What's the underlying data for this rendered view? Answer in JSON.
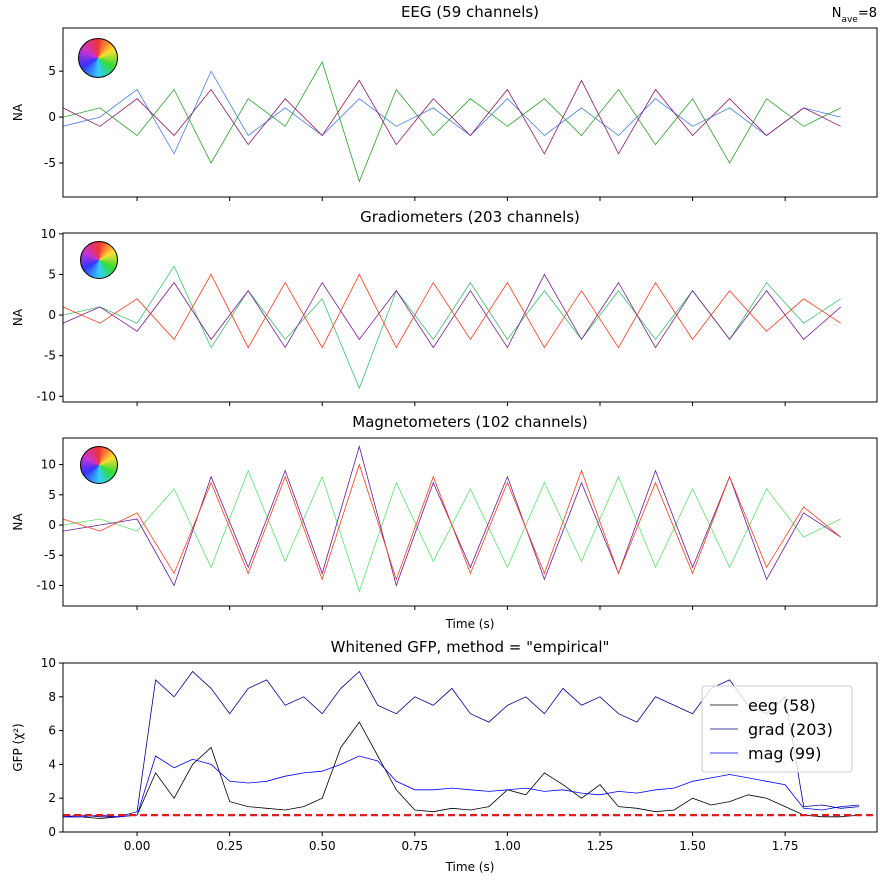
{
  "chart_data": [
    {
      "type": "line",
      "title": "EEG (59 channels)",
      "ylabel": "NA",
      "annotation": {
        "base": "N",
        "subscript": "ave",
        "text": "=8"
      },
      "x": [
        -0.2,
        -0.1,
        0,
        0.1,
        0.2,
        0.3,
        0.4,
        0.5,
        0.6,
        0.7,
        0.8,
        0.9,
        1.0,
        1.1,
        1.2,
        1.3,
        1.4,
        1.5,
        1.6,
        1.7,
        1.8,
        1.9
      ],
      "series": [
        {
          "color": "#4a7fe0",
          "values": [
            -1,
            0,
            3,
            -4,
            5,
            -2,
            1,
            -2,
            2,
            -1,
            1,
            -2,
            2,
            -2,
            1,
            -2,
            2,
            -1,
            1,
            -2,
            1,
            0
          ]
        },
        {
          "color": "#2ca02c",
          "values": [
            0,
            1,
            -2,
            3,
            -5,
            2,
            -1,
            6,
            -7,
            3,
            -2,
            2,
            -1,
            2,
            -2,
            3,
            -3,
            2,
            -5,
            2,
            -1,
            1
          ]
        },
        {
          "color": "#8b1a6b",
          "values": [
            1,
            -1,
            2,
            -2,
            3,
            -3,
            2,
            -2,
            4,
            -3,
            2,
            -2,
            3,
            -4,
            4,
            -4,
            3,
            -2,
            2,
            -2,
            1,
            -1
          ]
        }
      ],
      "xlim": [
        -0.2,
        1.998
      ],
      "xticks": [
        0,
        0.25,
        0.5,
        0.75,
        1,
        1.25,
        1.5,
        1.75
      ],
      "show_xtick_labels": false,
      "ylim": [
        -8.7,
        9.7
      ],
      "yticks": [
        -5,
        0,
        5
      ]
    },
    {
      "type": "line",
      "title": "Gradiometers (203 channels)",
      "ylabel": "NA",
      "x": [
        -0.2,
        -0.1,
        0,
        0.1,
        0.2,
        0.3,
        0.4,
        0.5,
        0.6,
        0.7,
        0.8,
        0.9,
        1.0,
        1.1,
        1.2,
        1.3,
        1.4,
        1.5,
        1.6,
        1.7,
        1.8,
        1.9
      ],
      "series": [
        {
          "color": "#40c070",
          "values": [
            0,
            1,
            -1,
            6,
            -4,
            3,
            -3,
            2,
            -9,
            3,
            -3,
            4,
            -3,
            3,
            -3,
            3,
            -3,
            3,
            -3,
            4,
            -1,
            2
          ]
        },
        {
          "color": "#7b2090",
          "values": [
            -1,
            1,
            -2,
            4,
            -3,
            3,
            -4,
            4,
            -3,
            3,
            -4,
            3,
            -4,
            5,
            -3,
            4,
            -4,
            3,
            -3,
            3,
            -3,
            1
          ]
        },
        {
          "color": "#f04020",
          "values": [
            1,
            -1,
            2,
            -3,
            5,
            -4,
            4,
            -4,
            5,
            -4,
            4,
            -3,
            4,
            -4,
            3,
            -4,
            4,
            -3,
            3,
            -2,
            2,
            -1
          ]
        }
      ],
      "xlim": [
        -0.2,
        1.998
      ],
      "xticks": [
        0,
        0.25,
        0.5,
        0.75,
        1,
        1.25,
        1.5,
        1.75
      ],
      "show_xtick_labels": false,
      "ylim": [
        -10.7,
        10.1
      ],
      "yticks": [
        -10,
        -5,
        0,
        5,
        10
      ]
    },
    {
      "type": "line",
      "title": "Magnetometers (102 channels)",
      "ylabel": "NA",
      "xlabel": "Time (s)",
      "x": [
        -0.2,
        -0.1,
        0,
        0.1,
        0.2,
        0.3,
        0.4,
        0.5,
        0.6,
        0.7,
        0.8,
        0.9,
        1.0,
        1.1,
        1.2,
        1.3,
        1.4,
        1.5,
        1.6,
        1.7,
        1.8,
        1.9
      ],
      "series": [
        {
          "color": "#60e070",
          "values": [
            0,
            1,
            -1,
            6,
            -7,
            9,
            -6,
            8,
            -11,
            7,
            -6,
            6,
            -7,
            7,
            -6,
            8,
            -7,
            6,
            -7,
            6,
            -2,
            1
          ]
        },
        {
          "color": "#6a1b9a",
          "values": [
            -1,
            0,
            1,
            -10,
            8,
            -7,
            9,
            -8,
            13,
            -10,
            7,
            -7,
            8,
            -9,
            7,
            -8,
            9,
            -7,
            8,
            -9,
            2,
            -2
          ]
        },
        {
          "color": "#f04020",
          "values": [
            1,
            -1,
            2,
            -8,
            7,
            -8,
            8,
            -9,
            10,
            -9,
            8,
            -8,
            7,
            -8,
            9,
            -8,
            7,
            -8,
            8,
            -7,
            3,
            -2
          ]
        }
      ],
      "xlim": [
        -0.2,
        1.998
      ],
      "xticks": [
        0,
        0.25,
        0.5,
        0.75,
        1,
        1.25,
        1.5,
        1.75
      ],
      "show_xtick_labels": false,
      "ylim": [
        -13.4,
        14.4
      ],
      "yticks": [
        -10,
        -5,
        0,
        5,
        10
      ]
    },
    {
      "type": "line",
      "title": "Whitened GFP, method = \"empirical\"",
      "ylabel": "GFP (χ²)",
      "xlabel": "Time (s)",
      "x": [
        -0.2,
        -0.15,
        -0.1,
        -0.05,
        0,
        0.05,
        0.1,
        0.15,
        0.2,
        0.25,
        0.3,
        0.35,
        0.4,
        0.45,
        0.5,
        0.55,
        0.6,
        0.65,
        0.7,
        0.75,
        0.8,
        0.85,
        0.9,
        0.95,
        1.0,
        1.05,
        1.1,
        1.15,
        1.2,
        1.25,
        1.3,
        1.35,
        1.4,
        1.45,
        1.5,
        1.55,
        1.6,
        1.65,
        1.7,
        1.75,
        1.8,
        1.85,
        1.9,
        1.95
      ],
      "series": [
        {
          "name": "eeg (58)",
          "color": "#000000",
          "values": [
            0.9,
            0.9,
            0.8,
            0.9,
            1.0,
            3.5,
            2.0,
            4.0,
            5.0,
            1.8,
            1.5,
            1.4,
            1.3,
            1.5,
            2.0,
            5.0,
            6.5,
            4.5,
            2.5,
            1.3,
            1.2,
            1.4,
            1.3,
            1.5,
            2.5,
            2.2,
            3.5,
            2.8,
            2.0,
            2.8,
            1.5,
            1.4,
            1.2,
            1.3,
            2.0,
            1.6,
            1.8,
            2.2,
            2.0,
            1.5,
            1.0,
            0.9,
            0.9,
            1.0
          ]
        },
        {
          "name": "grad (203)",
          "color": "#00008b",
          "values": [
            0.9,
            1.0,
            0.9,
            0.9,
            1.2,
            9.0,
            8.0,
            9.5,
            8.5,
            7.0,
            8.5,
            9.0,
            7.5,
            8.0,
            7.0,
            8.5,
            9.5,
            7.5,
            7.0,
            8.0,
            7.5,
            8.5,
            7.0,
            6.5,
            7.5,
            8.0,
            7.0,
            8.5,
            7.5,
            8.0,
            7.0,
            6.5,
            8.0,
            7.5,
            7.0,
            8.5,
            9.0,
            7.5,
            7.0,
            8.0,
            1.5,
            1.6,
            1.4,
            1.5
          ]
        },
        {
          "name": "mag (99)",
          "color": "#0000ff",
          "values": [
            0.9,
            0.9,
            1.0,
            0.9,
            1.0,
            4.5,
            3.8,
            4.3,
            4.0,
            3.0,
            2.9,
            3.0,
            3.3,
            3.5,
            3.6,
            4.0,
            4.5,
            4.2,
            3.0,
            2.5,
            2.5,
            2.6,
            2.5,
            2.4,
            2.5,
            2.6,
            2.4,
            2.5,
            2.3,
            2.2,
            2.4,
            2.3,
            2.5,
            2.6,
            3.0,
            3.2,
            3.4,
            3.2,
            3.0,
            2.8,
            1.4,
            1.3,
            1.5,
            1.6
          ]
        }
      ],
      "hline": {
        "value": 1,
        "color": "#e41a1c",
        "dashed": true
      },
      "legend": "upper right",
      "xlim": [
        -0.2,
        1.998
      ],
      "xticks": [
        {
          "value": 0,
          "label": "0.00"
        },
        {
          "value": 0.25,
          "label": "0.25"
        },
        {
          "value": 0.5,
          "label": "0.50"
        },
        {
          "value": 0.75,
          "label": "0.75"
        },
        {
          "value": 1,
          "label": "1.00"
        },
        {
          "value": 1.25,
          "label": "1.25"
        },
        {
          "value": 1.5,
          "label": "1.50"
        },
        {
          "value": 1.75,
          "label": "1.75"
        }
      ],
      "ylim": [
        0,
        10
      ],
      "yticks": [
        0,
        2,
        4,
        6,
        8,
        10
      ]
    }
  ]
}
